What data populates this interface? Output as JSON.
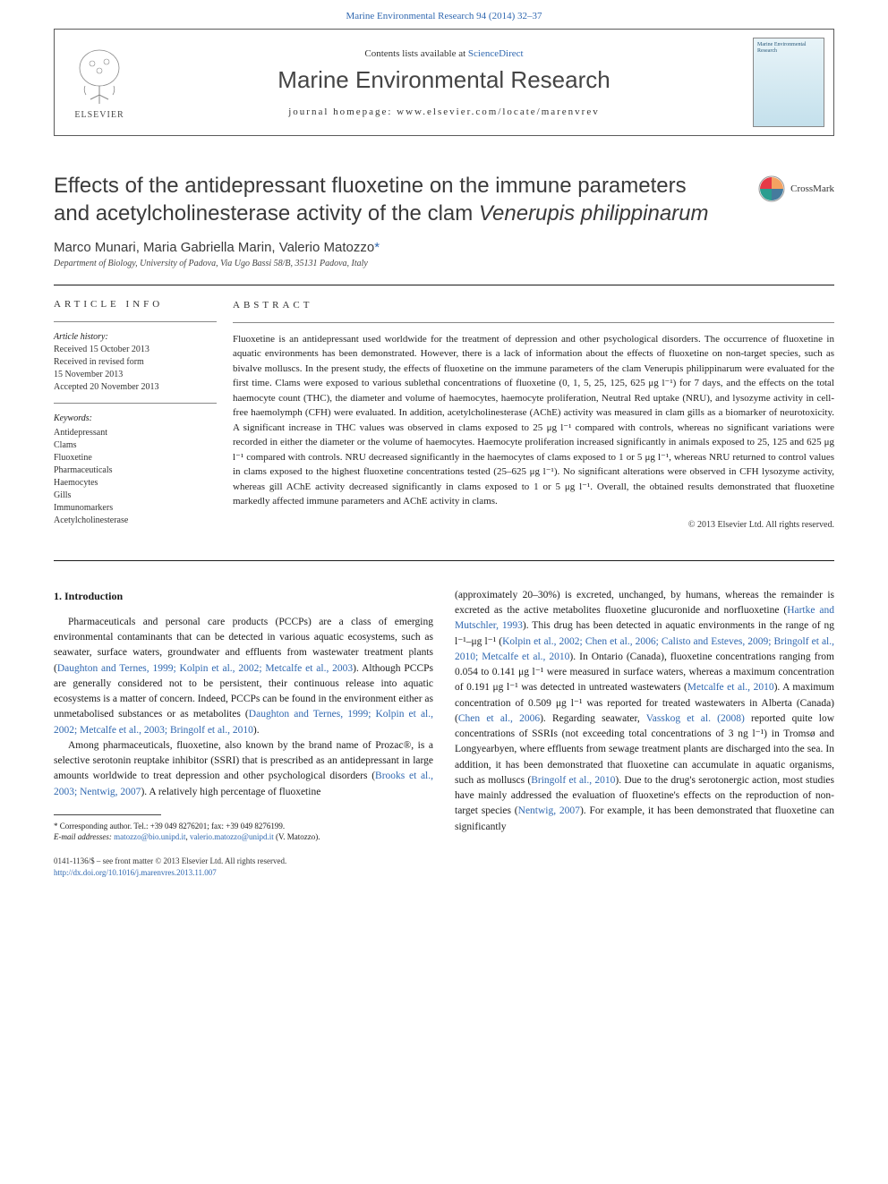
{
  "top_link": {
    "citation": "Marine Environmental Research 94 (2014) 32–37",
    "color": "#3068b0"
  },
  "header": {
    "contents_prefix": "Contents lists available at ",
    "contents_link": "ScienceDirect",
    "journal_name": "Marine Environmental Research",
    "homepage_label": "journal homepage: ",
    "homepage_url": "www.elsevier.com/locate/marenvrev",
    "elsevier_label": "ELSEVIER",
    "cover_text": "Marine Environmental Research"
  },
  "crossmark": {
    "label": "CrossMark",
    "colors": [
      "#e63946",
      "#f4a261",
      "#2a9d8f",
      "#457b9d"
    ]
  },
  "title": {
    "line1": "Effects of the antidepressant fluoxetine on the immune parameters",
    "line2_pre": "and acetylcholinesterase activity of the clam ",
    "line2_species": "Venerupis philippinarum"
  },
  "authors": "Marco Munari, Maria Gabriella Marin, Valerio Matozzo",
  "corr_marker": "*",
  "affiliation": "Department of Biology, University of Padova, Via Ugo Bassi 58/B, 35131 Padova, Italy",
  "article_info": {
    "heading": "ARTICLE INFO",
    "history_head": "Article history:",
    "received": "Received 15 October 2013",
    "revised": "Received in revised form",
    "revised_date": "15 November 2013",
    "accepted": "Accepted 20 November 2013",
    "keywords_head": "Keywords:",
    "keywords": [
      "Antidepressant",
      "Clams",
      "Fluoxetine",
      "Pharmaceuticals",
      "Haemocytes",
      "Gills",
      "Immunomarkers",
      "Acetylcholinesterase"
    ]
  },
  "abstract": {
    "heading": "ABSTRACT",
    "text": "Fluoxetine is an antidepressant used worldwide for the treatment of depression and other psychological disorders. The occurrence of fluoxetine in aquatic environments has been demonstrated. However, there is a lack of information about the effects of fluoxetine on non-target species, such as bivalve molluscs. In the present study, the effects of fluoxetine on the immune parameters of the clam Venerupis philippinarum were evaluated for the first time. Clams were exposed to various sublethal concentrations of fluoxetine (0, 1, 5, 25, 125, 625 μg l⁻¹) for 7 days, and the effects on the total haemocyte count (THC), the diameter and volume of haemocytes, haemocyte proliferation, Neutral Red uptake (NRU), and lysozyme activity in cell-free haemolymph (CFH) were evaluated. In addition, acetylcholinesterase (AChE) activity was measured in clam gills as a biomarker of neurotoxicity. A significant increase in THC values was observed in clams exposed to 25 μg l⁻¹ compared with controls, whereas no significant variations were recorded in either the diameter or the volume of haemocytes. Haemocyte proliferation increased significantly in animals exposed to 25, 125 and 625 μg l⁻¹ compared with controls. NRU decreased significantly in the haemocytes of clams exposed to 1 or 5 μg l⁻¹, whereas NRU returned to control values in clams exposed to the highest fluoxetine concentrations tested (25–625 μg l⁻¹). No significant alterations were observed in CFH lysozyme activity, whereas gill AChE activity decreased significantly in clams exposed to 1 or 5 μg l⁻¹. Overall, the obtained results demonstrated that fluoxetine markedly affected immune parameters and AChE activity in clams.",
    "copyright": "© 2013 Elsevier Ltd. All rights reserved."
  },
  "body": {
    "section_head": "1. Introduction",
    "col1_p1": "Pharmaceuticals and personal care products (PCCPs) are a class of emerging environmental contaminants that can be detected in various aquatic ecosystems, such as seawater, surface waters, groundwater and effluents from wastewater treatment plants (",
    "col1_p1_ref1": "Daughton and Ternes, 1999; Kolpin et al., 2002; Metcalfe et al., 2003",
    "col1_p1_cont": "). Although PCCPs are generally considered not to be persistent, their continuous release into aquatic ecosystems is a matter of concern. Indeed, PCCPs can be found in the environment either as unmetabolised substances or as metabolites (",
    "col1_p1_ref2": "Daughton and Ternes, 1999; Kolpin et al., 2002; Metcalfe et al., 2003; Bringolf et al., 2010",
    "col1_p1_end": ").",
    "col1_p2": "Among pharmaceuticals, fluoxetine, also known by the brand name of Prozac®, is a selective serotonin reuptake inhibitor (SSRI) that is prescribed as an antidepressant in large amounts worldwide to treat depression and other psychological disorders (",
    "col1_p2_ref": "Brooks et al., 2003; Nentwig, 2007",
    "col1_p2_end": "). A relatively high percentage of fluoxetine",
    "col2_p1_start": "(approximately 20–30%) is excreted, unchanged, by humans, whereas the remainder is excreted as the active metabolites fluoxetine glucuronide and norfluoxetine (",
    "col2_ref1": "Hartke and Mutschler, 1993",
    "col2_p1_cont1": "). This drug has been detected in aquatic environments in the range of ng l⁻¹–μg l⁻¹ (",
    "col2_ref2": "Kolpin et al., 2002; Chen et al., 2006; Calisto and Esteves, 2009; Bringolf et al., 2010; Metcalfe et al., 2010",
    "col2_p1_cont2": "). In Ontario (Canada), fluoxetine concentrations ranging from 0.054 to 0.141 μg l⁻¹ were measured in surface waters, whereas a maximum concentration of 0.191 μg l⁻¹ was detected in untreated wastewaters (",
    "col2_ref3": "Metcalfe et al., 2010",
    "col2_p1_cont3": "). A maximum concentration of 0.509 μg l⁻¹ was reported for treated wastewaters in Alberta (Canada) (",
    "col2_ref4": "Chen et al., 2006",
    "col2_p1_cont4": "). Regarding seawater, ",
    "col2_ref5": "Vasskog et al. (2008)",
    "col2_p1_cont5": " reported quite low concentrations of SSRIs (not exceeding total concentrations of 3 ng l⁻¹) in Tromsø and Longyearbyen, where effluents from sewage treatment plants are discharged into the sea. In addition, it has been demonstrated that fluoxetine can accumulate in aquatic organisms, such as molluscs (",
    "col2_ref6": "Bringolf et al., 2010",
    "col2_p1_cont6": "). Due to the drug's serotonergic action, most studies have mainly addressed the evaluation of fluoxetine's effects on the reproduction of non-target species (",
    "col2_ref7": "Nentwig, 2007",
    "col2_p1_end": "). For example, it has been demonstrated that fluoxetine can significantly"
  },
  "footnote": {
    "corr": "* Corresponding author. Tel.: +39 049 8276201; fax: +39 049 8276199.",
    "email_label": "E-mail addresses: ",
    "email1": "matozzo@bio.unipd.it",
    "email_sep": ", ",
    "email2": "valerio.matozzo@unipd.it",
    "email_suffix": " (V. Matozzo)."
  },
  "bottom": {
    "issn": "0141-1136/$ – see front matter © 2013 Elsevier Ltd. All rights reserved.",
    "doi": "http://dx.doi.org/10.1016/j.marenvres.2013.11.007"
  },
  "colors": {
    "link": "#3068b0",
    "text": "#1a1a1a",
    "heading": "#3a3a3a",
    "border": "#5a5a5a"
  }
}
